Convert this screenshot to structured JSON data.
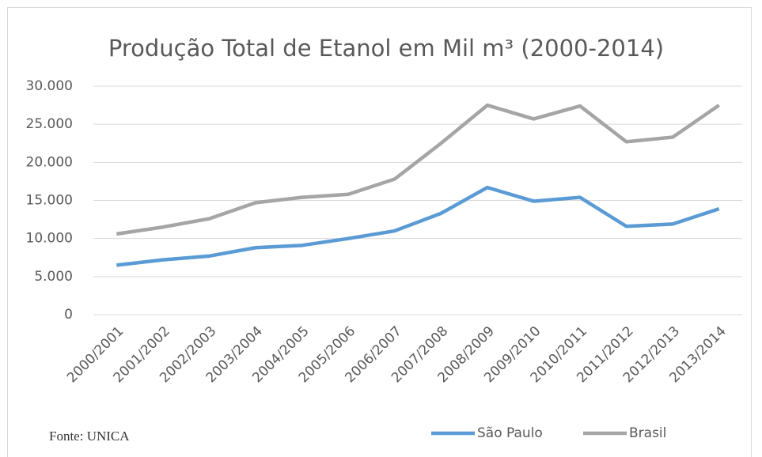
{
  "chart_data": {
    "type": "line",
    "title": "Produção Total de Etanol em Mil m³ (2000-2014)",
    "categories": [
      "2000/2001",
      "2001/2002",
      "2002/2003",
      "2003/2004",
      "2004/2005",
      "2005/2006",
      "2006/2007",
      "2007/2008",
      "2008/2009",
      "2009/2010",
      "2010/2011",
      "2011/2012",
      "2012/2013",
      "2013/2014"
    ],
    "series": [
      {
        "name": "São Paulo",
        "color": "#5b9bd5",
        "values": [
          6500,
          7200,
          7700,
          8800,
          9100,
          10000,
          11000,
          13300,
          16700,
          14900,
          15400,
          11600,
          11900,
          13900
        ]
      },
      {
        "name": "Brasil",
        "color": "#a5a5a5",
        "values": [
          10600,
          11500,
          12600,
          14700,
          15400,
          15800,
          17800,
          22500,
          27500,
          25700,
          27400,
          22700,
          23300,
          27500
        ]
      }
    ],
    "ylim": [
      0,
      30000
    ],
    "yticks": [
      0,
      {
        "value": 5000,
        "label": "5.000"
      },
      {
        "value": 10000,
        "label": "10.000"
      },
      {
        "value": 15000,
        "label": "15.000"
      },
      {
        "value": 20000,
        "label": "20.000"
      },
      {
        "value": 25000,
        "label": "25.000"
      },
      {
        "value": 30000,
        "label": "30.000"
      }
    ],
    "grid": true,
    "legend": "bottom",
    "source": "Fonte: UNICA"
  }
}
